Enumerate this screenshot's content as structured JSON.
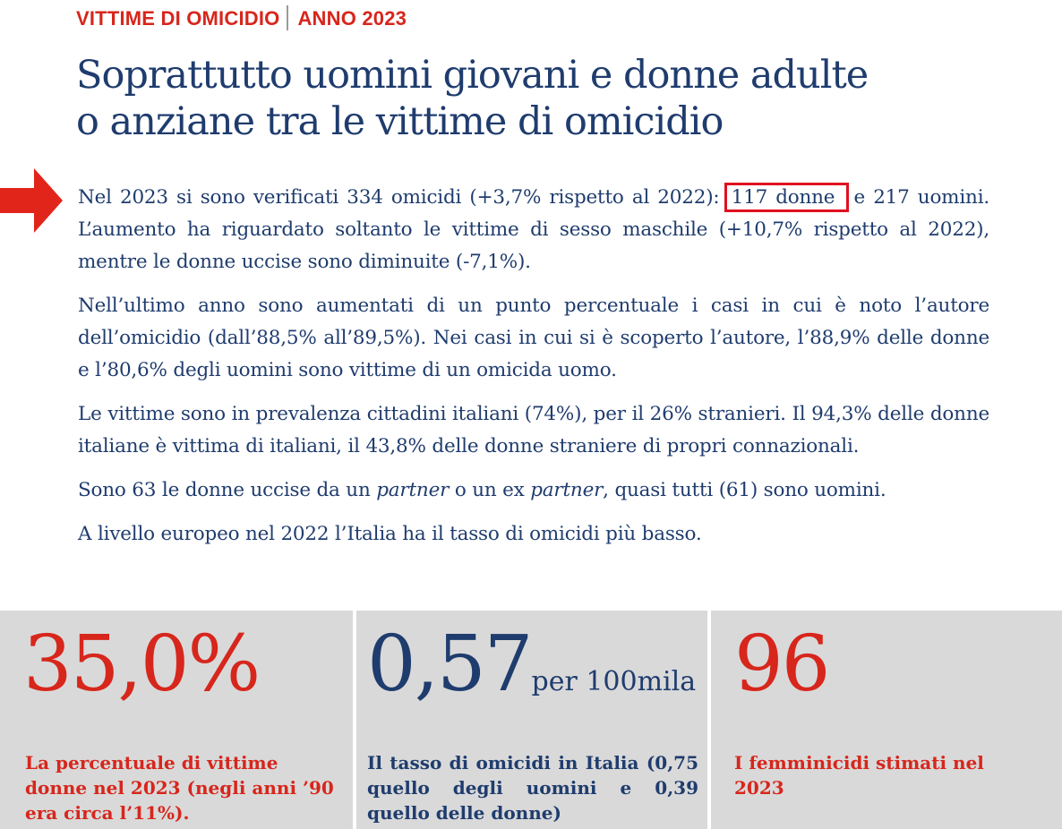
{
  "header": {
    "kicker_left": "VITTIME DI OMICIDIO",
    "kicker_right": "ANNO 2023",
    "title_line1": "Soprattutto uomini giovani e donne adulte",
    "title_line2": "o anziane tra le vittime di omicidio"
  },
  "colors": {
    "accent_red": "#d7261c",
    "navy": "#1f3c6e",
    "panel_grey": "#d9d9d9",
    "highlight_box": "#e0101f"
  },
  "icons": {
    "pointer": "arrow-right-icon"
  },
  "body": {
    "p1_a": "Nel 2023 si sono verificati 334 omicidi (+3,7% rispetto al 2022): ",
    "p1_highlight": "117 donne",
    "p1_b": " e 217 uomini. L’aumento ha riguardato soltanto le vittime di sesso maschile (+10,7% rispetto al 2022), mentre le donne uccise sono diminuite (-7,1%).",
    "p2": "Nell’ultimo anno sono aumentati di un punto percentuale i casi in cui è noto l’autore dell’omicidio (dall’88,5% all’89,5%). Nei casi in cui si è scoperto l’autore, l’88,9% delle donne e l’80,6% degli uomini sono vittime di un omicida uomo.",
    "p3": "Le vittime sono in prevalenza cittadini italiani (74%), per il 26% stranieri. Il 94,3% delle donne italiane è vittima di italiani, il 43,8% delle donne straniere di propri connazionali.",
    "p4_a": "Sono 63 le donne uccise da un ",
    "p4_i1": "partner",
    "p4_b": " o un ex ",
    "p4_i2": "partner",
    "p4_c": ", quasi tutti (61) sono uomini.",
    "p5": "A livello europeo nel 2022 l’Italia ha il tasso di omicidi più basso."
  },
  "stats": [
    {
      "value": "35,0%",
      "unit": "",
      "caption": "La percentuale di vittime donne nel 2023 (negli anni ’90 era circa l’11%)."
    },
    {
      "value": "0,57",
      "unit": "per 100mila",
      "caption": "Il tasso di omicidi in Italia (0,75 quello degli uomini e 0,39 quello delle donne)"
    },
    {
      "value": "96",
      "unit": "",
      "caption": "I femminicidi stimati nel 2023"
    }
  ]
}
